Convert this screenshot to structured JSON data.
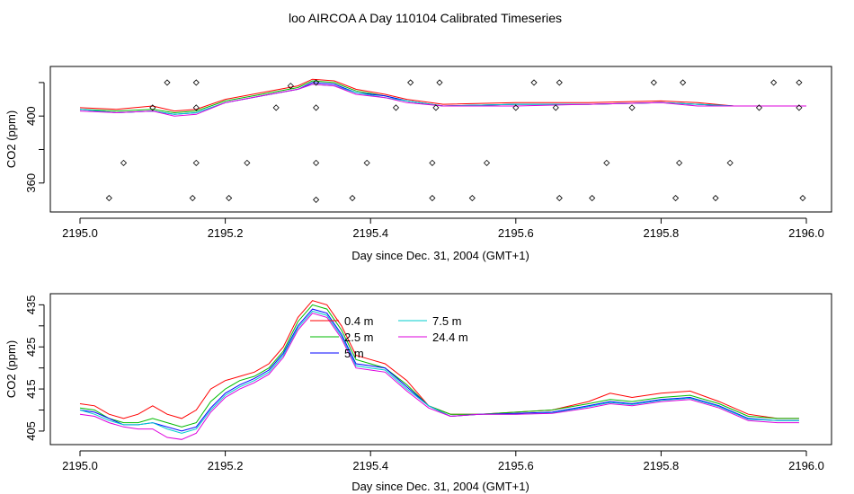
{
  "title": "loo AIRCOA A  Day 110104  Calibrated Timeseries",
  "chart_data": [
    {
      "type": "scatter+line",
      "xlabel": "Day since Dec. 31, 2004 (GMT+1)",
      "ylabel": "CO2 (ppm)",
      "xlim": [
        2195.0,
        2196.0
      ],
      "ylim": [
        347,
        428
      ],
      "xticks": [
        "2195.0",
        "2195.2",
        "2195.4",
        "2195.6",
        "2195.8",
        "2196.0"
      ],
      "yticks": [
        "360",
        "400"
      ],
      "ytick_values": [
        360,
        380,
        400,
        420
      ],
      "grid": false,
      "legend": "none",
      "series": [
        {
          "color": "#ff0000",
          "x": [
            2195.0,
            2195.05,
            2195.1,
            2195.13,
            2195.16,
            2195.2,
            2195.25,
            2195.3,
            2195.32,
            2195.35,
            2195.38,
            2195.42,
            2195.45,
            2195.5,
            2195.6,
            2195.7,
            2195.8,
            2195.85,
            2195.9,
            2196.0
          ],
          "values": [
            405,
            404,
            406,
            403,
            404,
            410,
            414,
            418,
            422,
            421,
            416,
            413,
            410,
            407,
            408,
            408,
            409,
            408,
            406,
            406
          ]
        },
        {
          "color": "#00bb00",
          "x": [
            2195.0,
            2195.05,
            2195.1,
            2195.13,
            2195.16,
            2195.2,
            2195.25,
            2195.3,
            2195.32,
            2195.35,
            2195.38,
            2195.42,
            2195.45,
            2195.5,
            2195.6,
            2195.7,
            2195.8,
            2195.85,
            2195.9,
            2196.0
          ],
          "values": [
            404,
            403,
            404,
            402,
            403,
            409,
            413,
            417,
            421,
            420,
            415,
            412,
            409,
            406,
            407,
            407,
            408,
            407,
            406,
            406
          ]
        },
        {
          "color": "#0000ff",
          "x": [
            2195.0,
            2195.05,
            2195.1,
            2195.13,
            2195.16,
            2195.2,
            2195.25,
            2195.3,
            2195.32,
            2195.35,
            2195.38,
            2195.42,
            2195.45,
            2195.5,
            2195.6,
            2195.7,
            2195.8,
            2195.85,
            2195.9,
            2196.0
          ],
          "values": [
            404,
            402,
            403,
            401,
            402,
            408,
            412,
            416,
            420,
            419,
            414,
            412,
            409,
            406,
            407,
            407,
            408,
            407,
            406,
            406
          ]
        },
        {
          "color": "#00cccc",
          "x": [
            2195.0,
            2195.05,
            2195.1,
            2195.13,
            2195.16,
            2195.2,
            2195.25,
            2195.3,
            2195.32,
            2195.35,
            2195.38,
            2195.42,
            2195.45,
            2195.5,
            2195.6,
            2195.7,
            2195.8,
            2195.85,
            2195.9,
            2196.0
          ],
          "values": [
            404,
            402,
            403,
            401,
            402,
            408,
            412,
            416,
            419,
            418,
            414,
            411,
            409,
            406,
            407,
            407,
            408,
            407,
            406,
            406
          ]
        },
        {
          "color": "#dd00dd",
          "x": [
            2195.0,
            2195.05,
            2195.1,
            2195.13,
            2195.16,
            2195.2,
            2195.25,
            2195.3,
            2195.32,
            2195.35,
            2195.38,
            2195.42,
            2195.45,
            2195.5,
            2195.6,
            2195.7,
            2195.8,
            2195.85,
            2195.9,
            2196.0
          ],
          "values": [
            403,
            402,
            403,
            400,
            401,
            408,
            412,
            416,
            419,
            418,
            413,
            411,
            408,
            406,
            406,
            407,
            408,
            406,
            406,
            406
          ]
        }
      ],
      "points": {
        "x": [
          2195.04,
          2195.06,
          2195.1,
          2195.12,
          2195.155,
          2195.16,
          2195.16,
          2195.16,
          2195.205,
          2195.23,
          2195.27,
          2195.29,
          2195.325,
          2195.325,
          2195.325,
          2195.325,
          2195.375,
          2195.395,
          2195.435,
          2195.455,
          2195.485,
          2195.485,
          2195.49,
          2195.495,
          2195.54,
          2195.56,
          2195.6,
          2195.625,
          2195.655,
          2195.66,
          2195.66,
          2195.705,
          2195.725,
          2195.76,
          2195.79,
          2195.82,
          2195.825,
          2195.83,
          2195.875,
          2195.895,
          2195.935,
          2195.955,
          2195.99,
          2195.99,
          2195.995
        ],
        "y": [
          351,
          372,
          405,
          420,
          351,
          372,
          405,
          420,
          351,
          372,
          405,
          418,
          405,
          420,
          372,
          350,
          351,
          372,
          405,
          420,
          372,
          351,
          405,
          420,
          351,
          372,
          405,
          420,
          405,
          420,
          351,
          351,
          372,
          405,
          420,
          351,
          372,
          420,
          351,
          372,
          405,
          420,
          420,
          405,
          351
        ]
      }
    },
    {
      "type": "line",
      "xlabel": "Day since Dec. 31, 2004 (GMT+1)",
      "ylabel": "CO2 (ppm)",
      "xlim": [
        2195.0,
        2196.0
      ],
      "ylim": [
        402,
        437
      ],
      "xticks": [
        "2195.0",
        "2195.2",
        "2195.4",
        "2195.6",
        "2195.8",
        "2196.0"
      ],
      "yticks": [
        "405",
        "415",
        "425",
        "435"
      ],
      "ytick_values": [
        405,
        410,
        415,
        420,
        425,
        430,
        435
      ],
      "grid": false,
      "legend": "inside top-center",
      "series": [
        {
          "name": "0.4 m",
          "color": "#ff0000",
          "x": [
            2195.0,
            2195.02,
            2195.04,
            2195.06,
            2195.08,
            2195.1,
            2195.12,
            2195.14,
            2195.16,
            2195.18,
            2195.2,
            2195.22,
            2195.24,
            2195.26,
            2195.28,
            2195.3,
            2195.32,
            2195.34,
            2195.36,
            2195.38,
            2195.4,
            2195.42,
            2195.45,
            2195.48,
            2195.51,
            2195.55,
            2195.6,
            2195.65,
            2195.7,
            2195.73,
            2195.76,
            2195.8,
            2195.84,
            2195.88,
            2195.92,
            2195.96,
            2195.99
          ],
          "values": [
            411.5,
            411,
            409,
            408,
            409,
            411,
            409,
            408,
            410,
            415,
            417,
            418,
            419,
            421,
            425,
            432,
            436,
            435,
            430,
            423,
            422,
            421,
            417,
            411,
            409,
            409,
            409.5,
            410,
            412,
            414,
            413,
            414,
            414.5,
            412,
            409,
            408,
            408
          ]
        },
        {
          "name": "2.5 m",
          "color": "#00bb00",
          "x": [
            2195.0,
            2195.02,
            2195.04,
            2195.06,
            2195.08,
            2195.1,
            2195.12,
            2195.14,
            2195.16,
            2195.18,
            2195.2,
            2195.22,
            2195.24,
            2195.26,
            2195.28,
            2195.3,
            2195.32,
            2195.34,
            2195.36,
            2195.38,
            2195.4,
            2195.42,
            2195.45,
            2195.48,
            2195.51,
            2195.55,
            2195.6,
            2195.65,
            2195.7,
            2195.73,
            2195.76,
            2195.8,
            2195.84,
            2195.88,
            2195.92,
            2195.96,
            2195.99
          ],
          "values": [
            410.5,
            410,
            408,
            407,
            407,
            408,
            407,
            406,
            407,
            412,
            415,
            417,
            418,
            420,
            424,
            431,
            435,
            434,
            429,
            422,
            421,
            420,
            416,
            411,
            409,
            409,
            409.5,
            410,
            411.5,
            412.5,
            412,
            413,
            413.5,
            411.5,
            408.5,
            408,
            408
          ]
        },
        {
          "name": "5 m",
          "color": "#0000ff",
          "x": [
            2195.0,
            2195.02,
            2195.04,
            2195.06,
            2195.08,
            2195.1,
            2195.12,
            2195.14,
            2195.16,
            2195.18,
            2195.2,
            2195.22,
            2195.24,
            2195.26,
            2195.28,
            2195.3,
            2195.32,
            2195.34,
            2195.36,
            2195.38,
            2195.4,
            2195.42,
            2195.45,
            2195.48,
            2195.51,
            2195.55,
            2195.6,
            2195.65,
            2195.7,
            2195.73,
            2195.76,
            2195.8,
            2195.84,
            2195.88,
            2195.92,
            2195.96,
            2195.99
          ],
          "values": [
            410,
            409.5,
            408,
            406.5,
            406.5,
            407,
            406,
            405,
            406,
            410.5,
            414,
            416,
            417.5,
            419.5,
            423.5,
            430,
            434,
            433,
            428,
            421,
            420.5,
            420,
            415.5,
            411,
            408.5,
            409,
            409.2,
            409.5,
            411,
            412,
            411.5,
            412.5,
            413,
            411,
            408,
            407.5,
            407.5
          ]
        },
        {
          "name": "7.5 m",
          "color": "#00cccc",
          "x": [
            2195.0,
            2195.02,
            2195.04,
            2195.06,
            2195.08,
            2195.1,
            2195.12,
            2195.14,
            2195.16,
            2195.18,
            2195.2,
            2195.22,
            2195.24,
            2195.26,
            2195.28,
            2195.3,
            2195.32,
            2195.34,
            2195.36,
            2195.38,
            2195.4,
            2195.42,
            2195.45,
            2195.48,
            2195.51,
            2195.55,
            2195.6,
            2195.65,
            2195.7,
            2195.73,
            2195.76,
            2195.8,
            2195.84,
            2195.88,
            2195.92,
            2195.96,
            2195.99
          ],
          "values": [
            410,
            409,
            407.5,
            406.5,
            406.5,
            407,
            405.5,
            404.5,
            405.5,
            410,
            413.5,
            415.5,
            417,
            419,
            423,
            429.5,
            433.5,
            432.5,
            427.5,
            420.5,
            420,
            419.5,
            415,
            411,
            408.5,
            409,
            409,
            409.3,
            410.8,
            411.8,
            411.3,
            412.3,
            412.8,
            410.8,
            407.8,
            407.5,
            407.5
          ]
        },
        {
          "name": "24.4 m",
          "color": "#dd00dd",
          "x": [
            2195.0,
            2195.02,
            2195.04,
            2195.06,
            2195.08,
            2195.1,
            2195.12,
            2195.14,
            2195.16,
            2195.18,
            2195.2,
            2195.22,
            2195.24,
            2195.26,
            2195.28,
            2195.3,
            2195.32,
            2195.34,
            2195.36,
            2195.38,
            2195.4,
            2195.42,
            2195.45,
            2195.48,
            2195.51,
            2195.55,
            2195.6,
            2195.65,
            2195.7,
            2195.73,
            2195.76,
            2195.8,
            2195.84,
            2195.88,
            2195.92,
            2195.96,
            2195.99
          ],
          "values": [
            409,
            408.5,
            407,
            406,
            405.5,
            405.5,
            403.5,
            403,
            404.5,
            409.5,
            413,
            415,
            416.5,
            418.5,
            422.5,
            429,
            433,
            432,
            427,
            420,
            419.5,
            419,
            414.5,
            410.5,
            408.5,
            409,
            409,
            409.2,
            410.5,
            411.5,
            411,
            412,
            412.5,
            410.5,
            407.5,
            407,
            407
          ]
        }
      ]
    }
  ]
}
